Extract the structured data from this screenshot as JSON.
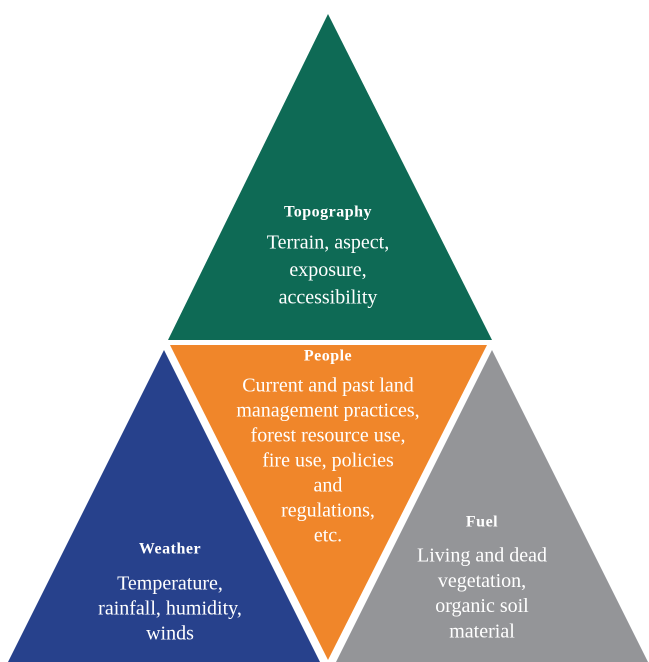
{
  "nodes": [
    {
      "heading": "Topography",
      "lines": [
        "Terrain, aspect,",
        "exposure,",
        "accessibility"
      ]
    },
    {
      "heading": "People",
      "lines": [
        "Current and past land",
        "management practices,",
        "forest resource use,",
        "fire use, policies",
        "and",
        "regulations,",
        "etc."
      ]
    },
    {
      "heading": "Weather",
      "lines": [
        "Temperature,",
        "rainfall, humidity,",
        "winds"
      ]
    },
    {
      "heading": "Fuel",
      "lines": [
        "Living and dead",
        "vegetation,",
        "organic soil",
        "material"
      ]
    }
  ]
}
